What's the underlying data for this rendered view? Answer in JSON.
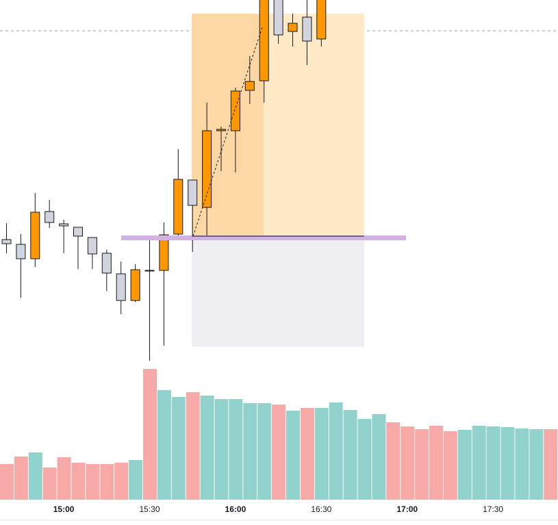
{
  "chart_data": {
    "type": "candlestick",
    "categories": [
      null,
      null,
      null,
      null,
      "15:00",
      null,
      null,
      null,
      null,
      null,
      "15:30",
      null,
      null,
      null,
      null,
      null,
      "16:00",
      null,
      null,
      null,
      null,
      null,
      "16:30",
      null,
      null,
      null,
      null,
      null,
      "17:00",
      null,
      null,
      null,
      null,
      null,
      "17:30",
      null,
      null,
      null,
      null
    ],
    "ylim": [
      0,
      520
    ],
    "up_color": "#ff9800",
    "down_color": "#d1d4dc",
    "open": [
      170,
      163,
      142,
      211,
      193,
      188,
      173,
      150,
      120,
      81,
      124,
      125,
      178,
      257,
      217,
      329,
      329,
      388,
      402,
      525,
      474,
      495,
      463,
      null,
      null,
      null,
      null,
      null,
      null,
      null,
      null,
      null,
      null,
      null,
      null,
      null,
      null,
      null,
      null
    ],
    "high": [
      194,
      178,
      238,
      228,
      199,
      188,
      173,
      155,
      138,
      134,
      170,
      195,
      302,
      257,
      370,
      335,
      392,
      438,
      540,
      535,
      500,
      525,
      550,
      null,
      null,
      null,
      null,
      null,
      null,
      null,
      null,
      null,
      null,
      null,
      null,
      null,
      null,
      null,
      null
    ],
    "low": [
      150,
      85,
      130,
      187,
      150,
      127,
      127,
      95,
      61,
      79,
      -7,
      15,
      174,
      152,
      176,
      270,
      268,
      368,
      370,
      456,
      452,
      425,
      452,
      null,
      null,
      null,
      null,
      null,
      null,
      null,
      null,
      null,
      null,
      null,
      null,
      null,
      null,
      null,
      null
    ],
    "close": [
      164,
      142,
      210,
      195,
      190,
      175,
      149,
      121,
      81,
      126,
      125,
      177,
      258,
      220,
      329,
      331,
      387,
      401,
      530,
      469,
      486,
      460,
      540,
      null,
      null,
      null,
      null,
      null,
      null,
      null,
      null,
      null,
      null,
      null,
      null,
      null,
      null,
      null,
      null
    ],
    "volume": {
      "ylim": [
        0,
        200
      ],
      "values": [
        52,
        63,
        69,
        47,
        62,
        54,
        52,
        52,
        54,
        58,
        191,
        160,
        150,
        157,
        152,
        147,
        147,
        141,
        141,
        139,
        130,
        134,
        134,
        142,
        131,
        118,
        125,
        113,
        107,
        103,
        108,
        100,
        102,
        108,
        107,
        106,
        104,
        103,
        103
      ],
      "colors": [
        "#f7a9a7",
        "#f7a9a7",
        "#92d2cc",
        "#f7a9a7",
        "#f7a9a7",
        "#f7a9a7",
        "#f7a9a7",
        "#f7a9a7",
        "#f7a9a7",
        "#92d2cc",
        "#f7a9a7",
        "#92d2cc",
        "#92d2cc",
        "#f7a9a7",
        "#92d2cc",
        "#92d2cc",
        "#92d2cc",
        "#92d2cc",
        "#92d2cc",
        "#f7a9a7",
        "#92d2cc",
        "#f7a9a7",
        "#92d2cc",
        "#92d2cc",
        "#92d2cc",
        "#92d2cc",
        "#92d2cc",
        "#f7a9a7",
        "#f7a9a7",
        "#f7a9a7",
        "#f7a9a7",
        "#f7a9a7",
        "#92d2cc",
        "#92d2cc",
        "#92d2cc",
        "#92d2cc",
        "#92d2cc",
        "#92d2cc",
        "#f7a9a7"
      ]
    }
  }
}
